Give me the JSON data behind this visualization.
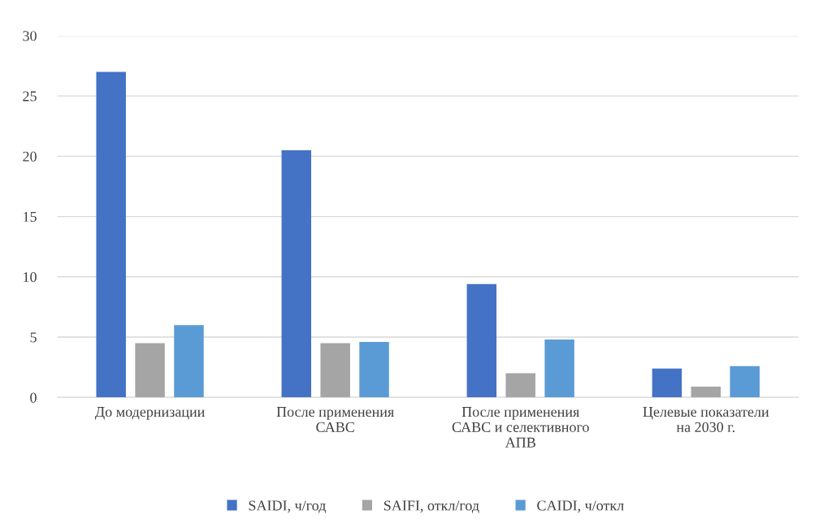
{
  "chart_data": {
    "type": "bar",
    "categories": [
      "До модернизации",
      "После применения\nСАВС",
      "После применения\nСАВС и селективного\nАПВ",
      "Целевые показатели\nна 2030 г."
    ],
    "series": [
      {
        "name": "SAIDI, ч/год",
        "color": "#4472c4",
        "values": [
          27,
          20.5,
          9.4,
          2.4
        ]
      },
      {
        "name": "SAIFI, откл/год",
        "color": "#a5a5a5",
        "values": [
          4.5,
          4.5,
          2,
          0.9
        ]
      },
      {
        "name": "CAIDI, ч/откл",
        "color": "#5b9bd5",
        "values": [
          6,
          4.6,
          4.8,
          2.6
        ]
      }
    ],
    "ylim": [
      0,
      30
    ],
    "yticks": [
      0,
      5,
      10,
      15,
      20,
      25,
      30
    ],
    "grid": "y",
    "legend": "bottom"
  }
}
